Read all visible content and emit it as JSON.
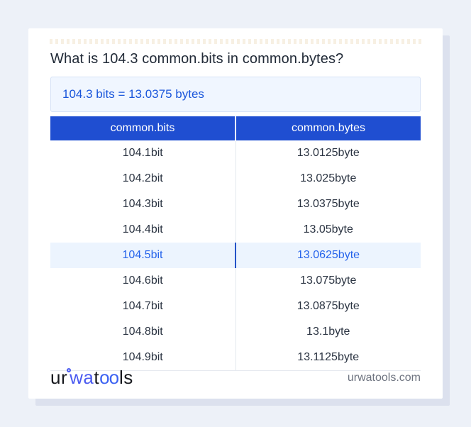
{
  "title": "What is 104.3 common.bits in common.bytes?",
  "result": "104.3 bits = 13.0375 bytes",
  "table": {
    "headers": [
      "common.bits",
      "common.bytes"
    ],
    "rows": [
      {
        "bits": "104.1bit",
        "bytes": "13.0125byte",
        "highlighted": false
      },
      {
        "bits": "104.2bit",
        "bytes": "13.025byte",
        "highlighted": false
      },
      {
        "bits": "104.3bit",
        "bytes": "13.0375byte",
        "highlighted": false
      },
      {
        "bits": "104.4bit",
        "bytes": "13.05byte",
        "highlighted": false
      },
      {
        "bits": "104.5bit",
        "bytes": "13.0625byte",
        "highlighted": true
      },
      {
        "bits": "104.6bit",
        "bytes": "13.075byte",
        "highlighted": false
      },
      {
        "bits": "104.7bit",
        "bytes": "13.0875byte",
        "highlighted": false
      },
      {
        "bits": "104.8bit",
        "bytes": "13.1byte",
        "highlighted": false
      },
      {
        "bits": "104.9bit",
        "bytes": "13.1125byte",
        "highlighted": false
      }
    ]
  },
  "footer": {
    "logo_parts": {
      "p1": "ur",
      "p2": "wa",
      "p3": "t",
      "p4": "oo",
      "p5": "ls"
    },
    "site": "urwatools.com"
  },
  "colors": {
    "page_background": "#edf1f8",
    "card_background": "#ffffff",
    "card_shadow": "#dce1ee",
    "table_header_bg": "#1f4ed1",
    "table_header_text": "#ffffff",
    "result_box_bg": "#f0f6ff",
    "result_box_border": "#d6e2f6",
    "result_text": "#1a56db",
    "highlight_row_bg": "#ecf4fe",
    "highlight_row_text": "#2563eb",
    "highlight_divider": "#2453c8",
    "row_text": "#2b3442",
    "logo_blue": "#4a5af0",
    "site_text": "#6e7480"
  }
}
